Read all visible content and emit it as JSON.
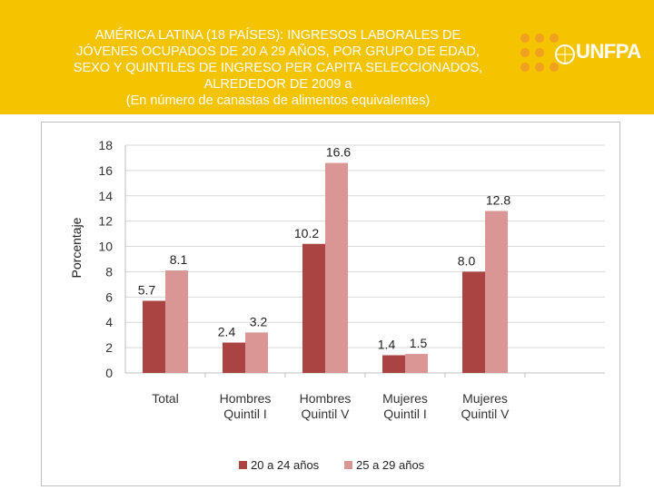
{
  "header": {
    "title_lines": [
      "AMÉRICA LATINA (18 PAÍSES): INGRESOS LABORALES DE",
      "JÓVENES OCUPADOS DE 20 A 29 AÑOS, POR GRUPO DE EDAD,",
      "SEXO Y QUINTILES DE INGRESO PER CAPITA SELECCIONADOS,",
      "ALREDEDOR DE 2009 a",
      "(En número de canastas de alimentos equivalentes)"
    ],
    "logo_text": "UNFPA",
    "logo_icon": "un-emblem-icon"
  },
  "colors": {
    "header_bg": "#f5c400",
    "series1": "#a94442",
    "series2": "#d99694"
  },
  "chart_data": {
    "type": "bar",
    "title": "",
    "xlabel": "",
    "ylabel": "Porcentaje",
    "ylim": [
      0,
      18
    ],
    "yticks": [
      0,
      2,
      4,
      6,
      8,
      10,
      12,
      14,
      16,
      18
    ],
    "grid": true,
    "legend_position": "bottom",
    "categories": [
      [
        "Total"
      ],
      [
        "Hombres",
        "Quintil I"
      ],
      [
        "Hombres",
        "Quintil V"
      ],
      [
        "Mujeres",
        "Quintil I"
      ],
      [
        "Mujeres",
        "Quintil V"
      ]
    ],
    "series": [
      {
        "name": "20 a 24 años",
        "values": [
          5.7,
          2.4,
          10.2,
          1.4,
          8.0
        ],
        "labels": [
          "5.7",
          "2.4",
          "10.2",
          "1.4",
          "8.0"
        ]
      },
      {
        "name": "25 a 29 años",
        "values": [
          8.1,
          3.2,
          16.6,
          1.5,
          12.8
        ],
        "labels": [
          "8.1",
          "3.2",
          "16.6",
          "1.5",
          "12.8"
        ]
      }
    ]
  }
}
